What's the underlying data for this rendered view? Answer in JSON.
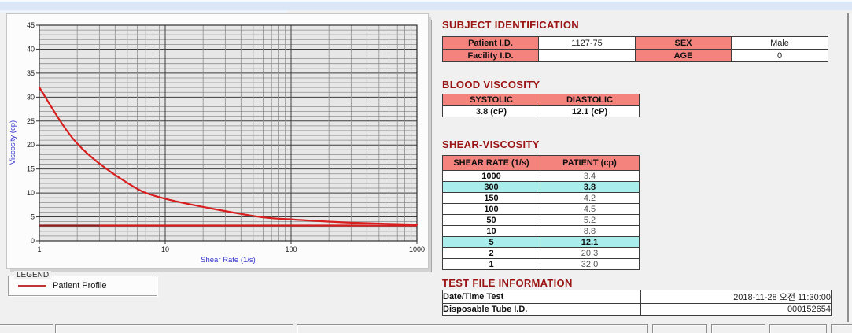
{
  "colors": {
    "header_pink": "#f4837d",
    "highlight_cyan": "#a9edec",
    "section_title_red": "#9b1414",
    "series_red": "#d81e1e",
    "baseline_dark_red": "#8e2020",
    "axis_label_blue": "#3434ce",
    "top_strip_blue": "#dbe7f6",
    "plot_background": "#e7e7e7"
  },
  "chart_data": {
    "type": "line",
    "title": "",
    "xlabel": "Shear Rate (1/s)",
    "ylabel": "Viscosity (cp)",
    "x_scale": "log",
    "xlim": [
      1,
      1000
    ],
    "ylim": [
      0,
      45
    ],
    "x_ticks_labeled": [
      1,
      10,
      100,
      1000
    ],
    "y_tick_interval_labeled": 5,
    "y_minor_grid_interval": 1,
    "grid": "on",
    "legend_position": "below-left",
    "series": [
      {
        "name": "Patient Profile",
        "color": "#d81e1e",
        "x": [
          1,
          2,
          5,
          10,
          50,
          100,
          150,
          300,
          1000
        ],
        "y": [
          32.0,
          20.3,
          12.1,
          8.8,
          5.2,
          4.5,
          4.2,
          3.8,
          3.4
        ]
      }
    ],
    "baseline": {
      "y": 3.2,
      "color": "#d81e1e",
      "dark_color": "#8e2020",
      "dark_until_x": 3
    }
  },
  "legend": {
    "box_label": "LEGEND",
    "series_label": "Patient Profile"
  },
  "sections": {
    "subject": {
      "title": "SUBJECT IDENTIFICATION",
      "row1": {
        "label1": "Patient I.D.",
        "value1": "1127-75",
        "label2": "SEX",
        "value2": "Male"
      },
      "row2": {
        "label1": "Facility I.D.",
        "value1": "",
        "label2": "AGE",
        "value2": "0"
      }
    },
    "blood": {
      "title": "BLOOD VISCOSITY",
      "header1": "SYSTOLIC",
      "header2": "DIASTOLIC",
      "value1": "3.8 (cP)",
      "value2": "12.1 (cP)"
    },
    "shear": {
      "title": "SHEAR-VISCOSITY",
      "col1": "SHEAR RATE (1/s)",
      "col2": "PATIENT (cp)",
      "rows": [
        {
          "rate": "1000",
          "patient": "3.4",
          "highlight": false
        },
        {
          "rate": "300",
          "patient": "3.8",
          "highlight": true
        },
        {
          "rate": "150",
          "patient": "4.2",
          "highlight": false
        },
        {
          "rate": "100",
          "patient": "4.5",
          "highlight": false
        },
        {
          "rate": "50",
          "patient": "5.2",
          "highlight": false
        },
        {
          "rate": "10",
          "patient": "8.8",
          "highlight": false
        },
        {
          "rate": "5",
          "patient": "12.1",
          "highlight": true
        },
        {
          "rate": "2",
          "patient": "20.3",
          "highlight": false
        },
        {
          "rate": "1",
          "patient": "32.0",
          "highlight": false
        }
      ]
    },
    "test": {
      "title": "TEST FILE INFORMATION",
      "rows": [
        {
          "label": "Date/Time Test",
          "value": "2018-11-28  오전 11:30:00"
        },
        {
          "label": "Disposable Tube I.D.",
          "value": "000152654"
        }
      ]
    }
  }
}
